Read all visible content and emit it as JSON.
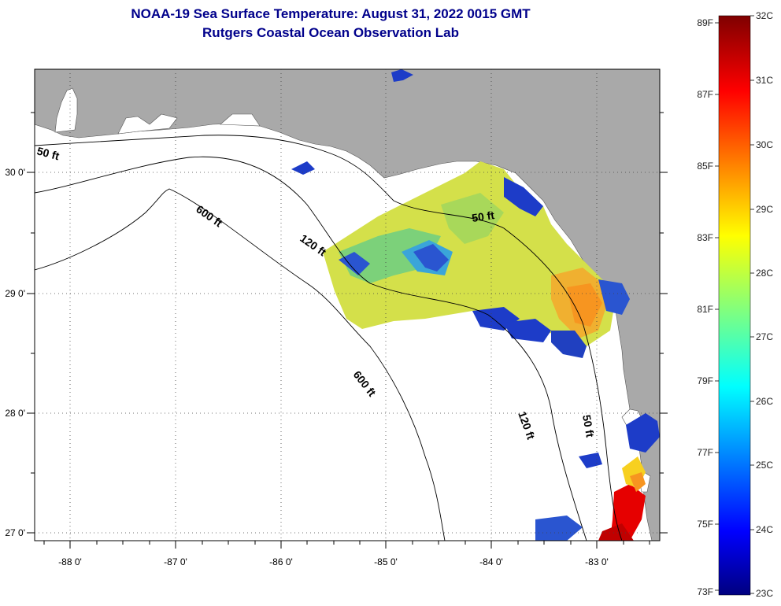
{
  "title": {
    "line1": "NOAA-19 Sea Surface Temperature:  August 31, 2022 0015 GMT",
    "line2": "Rutgers Coastal Ocean Observation Lab"
  },
  "axes": {
    "lon_labels": [
      "-88 0'",
      "-87 0'",
      "-86 0'",
      "-85 0'",
      "-84 0'",
      "-83 0'"
    ],
    "lat_labels": [
      "30 0'",
      "29 0'",
      "28 0'",
      "27 0'"
    ]
  },
  "contours": {
    "c50_a": "50 ft",
    "c600_a": "600 ft",
    "c120_a": "120 ft",
    "c50_b": "50 ft",
    "c600_b": "600 ft",
    "c120_b": "120 ft",
    "c50_c": "50 ft"
  },
  "colorbar": {
    "fahrenheit": [
      "89F",
      "87F",
      "85F",
      "83F",
      "81F",
      "79F",
      "77F",
      "75F",
      "73F"
    ],
    "celsius": [
      "32C",
      "31C",
      "30C",
      "29C",
      "28C",
      "27C",
      "26C",
      "25C",
      "24C",
      "23C"
    ]
  },
  "colors": {
    "land": "#a9a9a9",
    "ocean": "#ffffff",
    "title": "#00008b"
  }
}
